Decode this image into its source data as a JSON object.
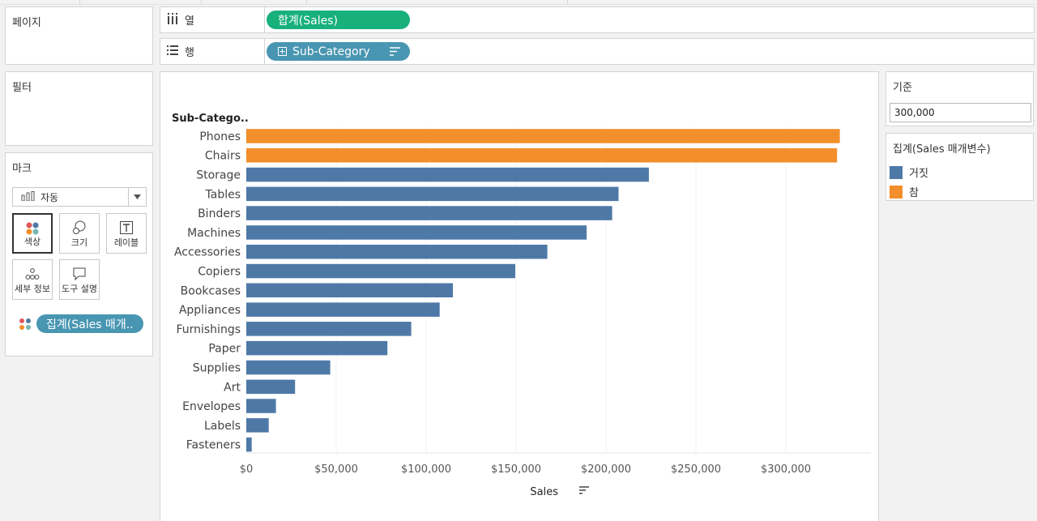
{
  "panels": {
    "pages_title": "페이지",
    "filters_title": "필터",
    "marks_title": "마크"
  },
  "shelves": {
    "columns_label": "열",
    "columns_pill": "합계(Sales)",
    "rows_label": "행",
    "rows_pill": "Sub-Category"
  },
  "marks": {
    "mark_type": "자동",
    "buttons": {
      "color": "색상",
      "size": "크기",
      "label": "레이블",
      "detail": "세부 정보",
      "tooltip": "도구 설명"
    },
    "color_pill": "집계(Sales 매개.."
  },
  "parameter": {
    "title": "기준",
    "value": "300,000"
  },
  "legend": {
    "title": "집계(Sales 매개변수)",
    "items": [
      {
        "label": "거짓",
        "color": "#4e79a7"
      },
      {
        "label": "참",
        "color": "#f28e2b"
      }
    ]
  },
  "chart_data": {
    "type": "bar",
    "orientation": "horizontal",
    "row_header": "Sub-Catego..",
    "xlabel": "Sales",
    "xlim": [
      0,
      345000
    ],
    "xticks": [
      0,
      50000,
      100000,
      150000,
      200000,
      250000,
      300000
    ],
    "xtick_labels": [
      "$0",
      "$50,000",
      "$100,000",
      "$150,000",
      "$200,000",
      "$250,000",
      "$300,000"
    ],
    "grid": true,
    "threshold": 300000,
    "colors": {
      "below": "#4e79a7",
      "above": "#f28e2b"
    },
    "categories": [
      "Phones",
      "Chairs",
      "Storage",
      "Tables",
      "Binders",
      "Machines",
      "Accessories",
      "Copiers",
      "Bookcases",
      "Appliances",
      "Furnishings",
      "Paper",
      "Supplies",
      "Art",
      "Envelopes",
      "Labels",
      "Fasteners"
    ],
    "values": [
      330007,
      328449,
      223844,
      206966,
      203413,
      189239,
      167380,
      149528,
      114880,
      107532,
      91705,
      78479,
      46674,
      27119,
      16476,
      12486,
      3024
    ]
  }
}
